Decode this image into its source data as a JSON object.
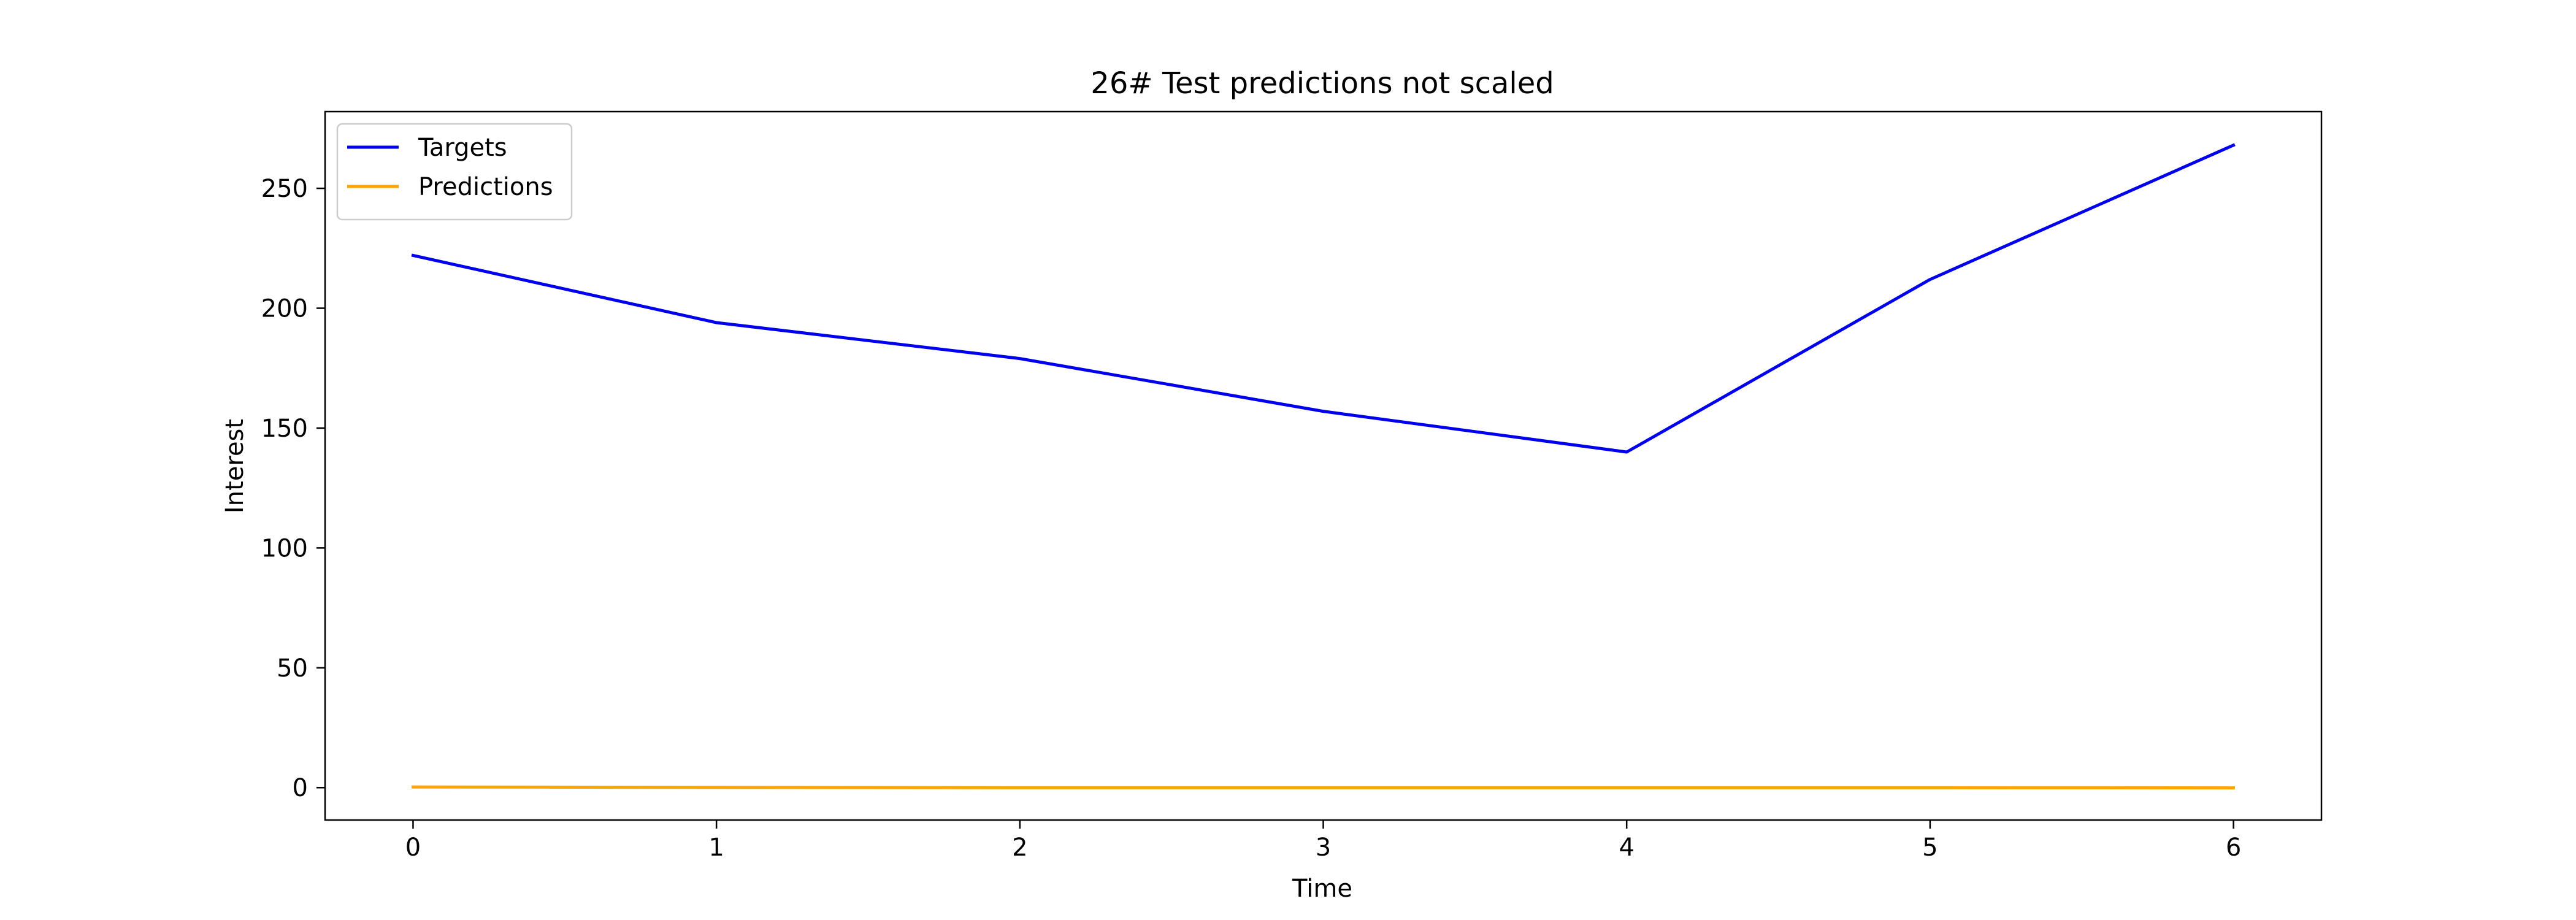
{
  "chart_data": {
    "type": "line",
    "title": "26# Test predictions not scaled",
    "xlabel": "Time",
    "ylabel": "Interest",
    "x": [
      0,
      1,
      2,
      3,
      4,
      5,
      6
    ],
    "xlim": [
      -0.29,
      6.29
    ],
    "ylim": [
      -13.5,
      282
    ],
    "xticks": [
      0,
      1,
      2,
      3,
      4,
      5,
      6
    ],
    "yticks": [
      0,
      50,
      100,
      150,
      200,
      250
    ],
    "grid": false,
    "legend_position": "top-left",
    "series": [
      {
        "name": "Targets",
        "color": "#0000ee",
        "values": [
          222,
          194,
          179,
          157,
          140,
          212,
          268
        ]
      },
      {
        "name": "Predictions",
        "color": "#ffa500",
        "values": [
          0.3,
          0.1,
          0.0,
          0.0,
          0.0,
          0.0,
          -0.1
        ]
      }
    ]
  }
}
